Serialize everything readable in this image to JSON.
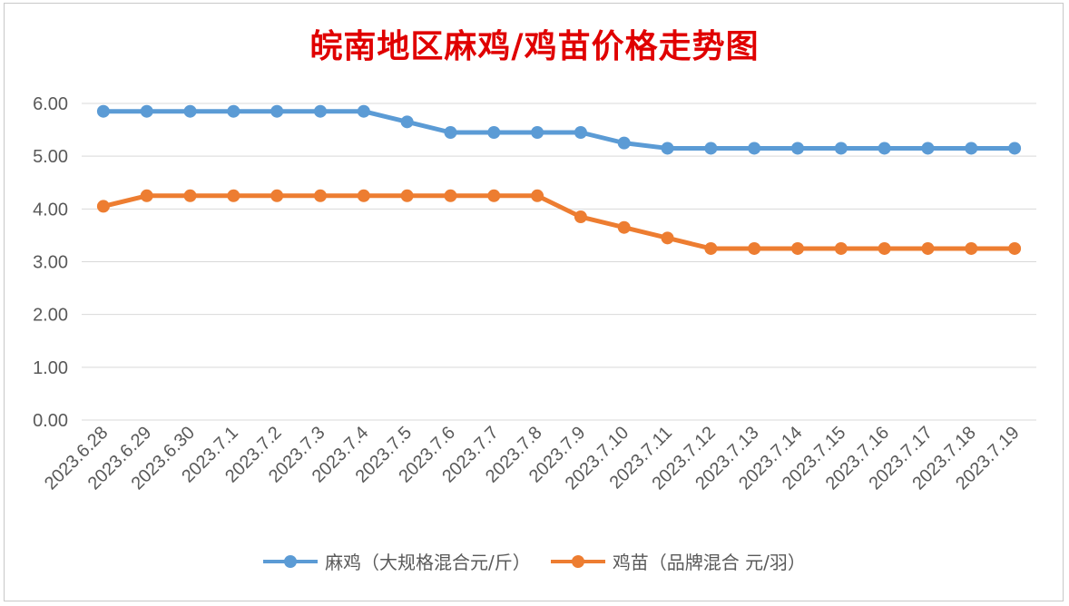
{
  "chart_data": {
    "type": "line",
    "title": "皖南地区麻鸡/鸡苗价格走势图",
    "title_color": "#e00000",
    "categories": [
      "2023.6.28",
      "2023.6.29",
      "2023.6.30",
      "2023.7.1",
      "2023.7.2",
      "2023.7.3",
      "2023.7.4",
      "2023.7.5",
      "2023.7.6",
      "2023.7.7",
      "2023.7.8",
      "2023.7.9",
      "2023.7.10",
      "2023.7.11",
      "2023.7.12",
      "2023.7.13",
      "2023.7.14",
      "2023.7.15",
      "2023.7.16",
      "2023.7.17",
      "2023.7.18",
      "2023.7.19"
    ],
    "series": [
      {
        "name": "麻鸡（大规格混合元/斤）",
        "color": "#5b9bd5",
        "values": [
          5.85,
          5.85,
          5.85,
          5.85,
          5.85,
          5.85,
          5.85,
          5.65,
          5.45,
          5.45,
          5.45,
          5.45,
          5.25,
          5.15,
          5.15,
          5.15,
          5.15,
          5.15,
          5.15,
          5.15,
          5.15,
          5.15
        ]
      },
      {
        "name": "鸡苗（品牌混合 元/羽）",
        "color": "#ed7d31",
        "values": [
          4.05,
          4.25,
          4.25,
          4.25,
          4.25,
          4.25,
          4.25,
          4.25,
          4.25,
          4.25,
          4.25,
          3.85,
          3.65,
          3.45,
          3.25,
          3.25,
          3.25,
          3.25,
          3.25,
          3.25,
          3.25,
          3.25
        ]
      }
    ],
    "ylim": [
      0,
      6
    ],
    "yticks": [
      "0.00",
      "1.00",
      "2.00",
      "3.00",
      "4.00",
      "5.00",
      "6.00"
    ],
    "grid": true,
    "gridline_color": "#d9d9d9",
    "legend_position": "bottom"
  }
}
